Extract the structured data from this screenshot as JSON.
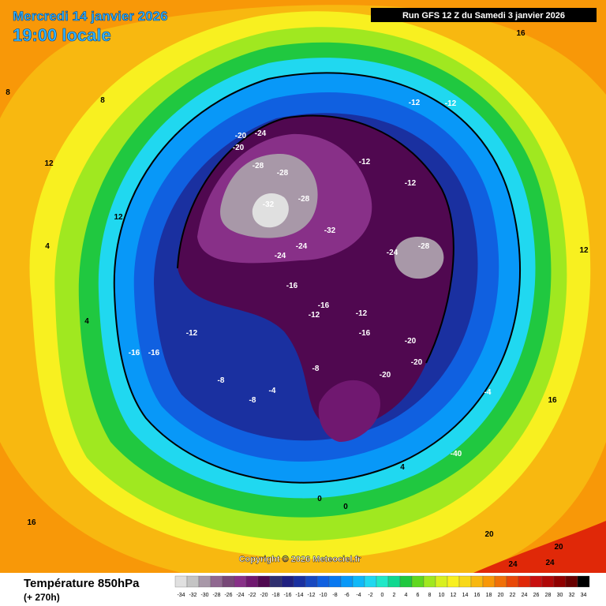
{
  "header": {
    "date": "Mercredi 14 janvier 2026",
    "time": "19:00 locale",
    "run": "Run GFS 12 Z du Samedi 3 janvier 2026"
  },
  "copyright": "Copyright © 2026 Meteociel.fr",
  "footer": {
    "title": "Température 850hPa",
    "lead": "(+ 270h)"
  },
  "legend": {
    "values": [
      -34,
      -32,
      -30,
      -28,
      -26,
      -24,
      -22,
      -20,
      -18,
      -16,
      -14,
      -12,
      -10,
      -8,
      -6,
      -4,
      -2,
      0,
      2,
      4,
      6,
      8,
      10,
      12,
      14,
      16,
      18,
      20,
      22,
      24,
      26,
      28,
      30,
      32,
      34
    ],
    "colors": [
      "#e0e0e0",
      "#c4c4c4",
      "#a898a8",
      "#906890",
      "#784878",
      "#883088",
      "#701870",
      "#500850",
      "#303070",
      "#202080",
      "#1a30a0",
      "#1848c0",
      "#1060e0",
      "#0878f0",
      "#0898f8",
      "#10b8f8",
      "#20d8f0",
      "#20e8c8",
      "#10d890",
      "#20c840",
      "#60d820",
      "#a0e820",
      "#d8f020",
      "#f8f020",
      "#f8d818",
      "#f8b810",
      "#f89808",
      "#f07008",
      "#e84808",
      "#e02808",
      "#c81010",
      "#b00808",
      "#900000",
      "#680000",
      "#000000"
    ]
  },
  "map_labels": [
    "-32",
    "-28",
    "-28",
    "-24",
    "-20",
    "-20",
    "-32",
    "-28",
    "-24",
    "-24",
    "-24",
    "-28",
    "-16",
    "-16",
    "-12",
    "-12",
    "-12",
    "-12",
    "-16",
    "-20",
    "-20",
    "-20",
    "-16",
    "-16",
    "-12",
    "-8",
    "-8",
    "-8",
    "-4",
    "-4",
    "0",
    "0",
    "4",
    "4",
    "4",
    "8",
    "8",
    "12",
    "12",
    "12",
    "16",
    "16",
    "16",
    "20",
    "20",
    "24",
    "24",
    "-40",
    "-12",
    "-12"
  ]
}
